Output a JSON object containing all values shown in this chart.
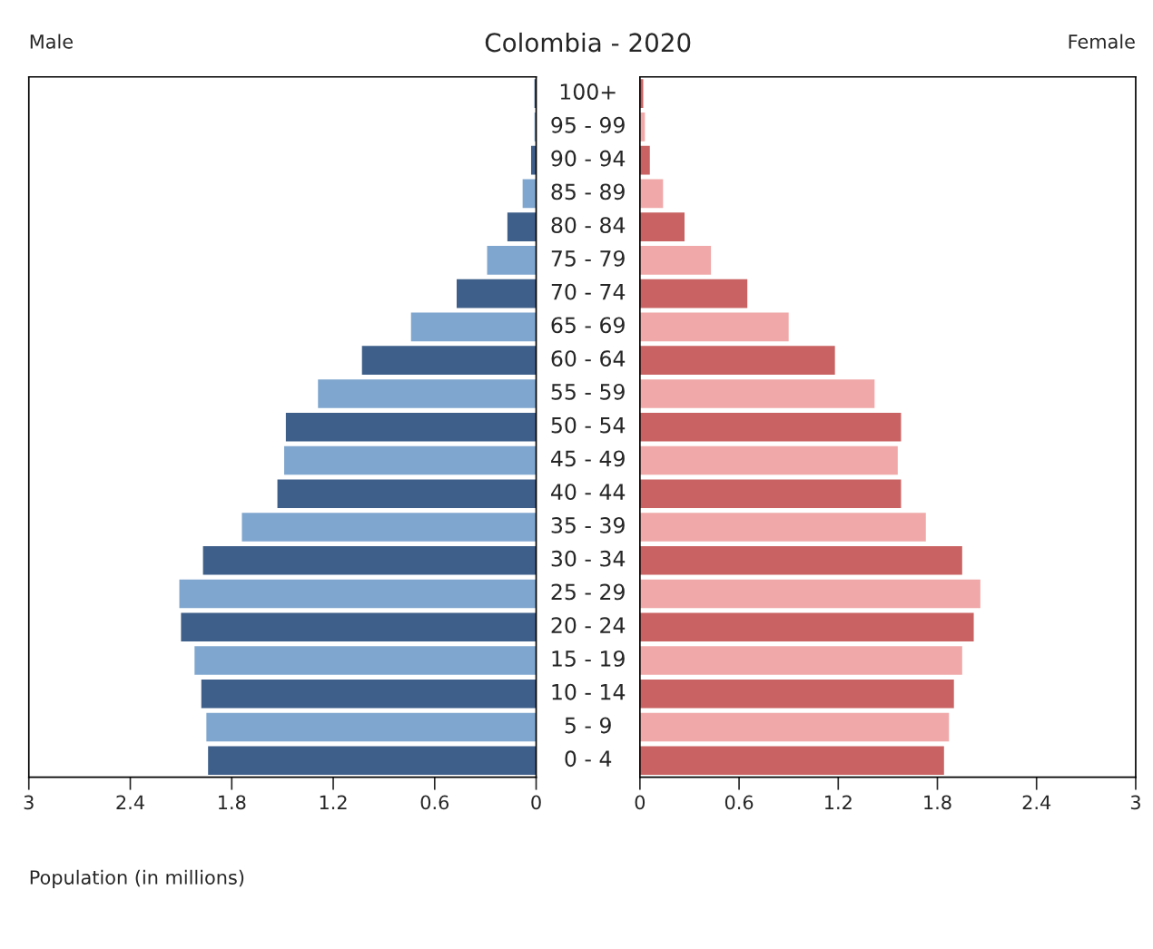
{
  "chart_data": [
    {
      "type": "bar",
      "orientation": "horizontal",
      "title": "Colombia - 2020",
      "xlabel": "Population (in millions)",
      "tick_labels": "x",
      "categories": [
        null,
        null,
        null,
        null,
        null,
        null,
        null,
        null,
        null,
        null,
        null,
        null,
        null,
        null,
        null,
        null,
        null,
        null,
        null,
        null,
        null
      ],
      "series": [
        {
          "name": "Male",
          "colors": [
            "#3e5f8a",
            "#7fa6cf",
            "#3e5f8a",
            "#7fa6cf",
            "#3e5f8a",
            "#7fa6cf",
            "#3e5f8a",
            "#7fa6cf",
            "#3e5f8a",
            "#7fa6cf",
            "#3e5f8a",
            "#7fa6cf",
            "#3e5f8a",
            "#7fa6cf",
            "#3e5f8a",
            "#7fa6cf",
            "#3e5f8a",
            "#7fa6cf",
            "#3e5f8a",
            "#7fa6cf",
            "#3e5f8a"
          ],
          "values": [
            0.01,
            0.01,
            0.03,
            0.08,
            0.17,
            0.29,
            0.47,
            0.74,
            1.03,
            1.29,
            1.48,
            1.49,
            1.53,
            1.74,
            1.97,
            2.11,
            2.1,
            2.02,
            1.98,
            1.95,
            1.94
          ]
        }
      ],
      "xlim": [
        3,
        0
      ],
      "xticks": [
        3,
        2.4,
        1.8,
        1.2,
        0.6,
        0
      ]
    },
    {
      "type": "bar",
      "orientation": "horizontal",
      "categories": [
        "100+",
        "95 - 99",
        "90 - 94",
        "85 - 89",
        "80 - 84",
        "75 - 79",
        "70 - 74",
        "65 - 69",
        "60 - 64",
        "55 - 59",
        "50 - 54",
        "45 - 49",
        "40 - 44",
        "35 - 39",
        "30 - 34",
        "25 - 29",
        "20 - 24",
        "15 - 19",
        "10 - 14",
        "5 - 9",
        "0 - 4"
      ],
      "series": [
        {
          "name": "Female",
          "colors": [
            "#c96262",
            "#f0a8a8",
            "#c96262",
            "#f0a8a8",
            "#c96262",
            "#f0a8a8",
            "#c96262",
            "#f0a8a8",
            "#c96262",
            "#f0a8a8",
            "#c96262",
            "#f0a8a8",
            "#c96262",
            "#f0a8a8",
            "#c96262",
            "#f0a8a8",
            "#c96262",
            "#f0a8a8",
            "#c96262",
            "#f0a8a8",
            "#c96262"
          ],
          "values": [
            0.02,
            0.03,
            0.06,
            0.14,
            0.27,
            0.43,
            0.65,
            0.9,
            1.18,
            1.42,
            1.58,
            1.56,
            1.58,
            1.73,
            1.95,
            2.06,
            2.02,
            1.95,
            1.9,
            1.87,
            1.84
          ]
        }
      ],
      "xlim": [
        0,
        3
      ],
      "xticks": [
        0,
        0.6,
        1.2,
        1.8,
        2.4,
        3
      ]
    }
  ]
}
